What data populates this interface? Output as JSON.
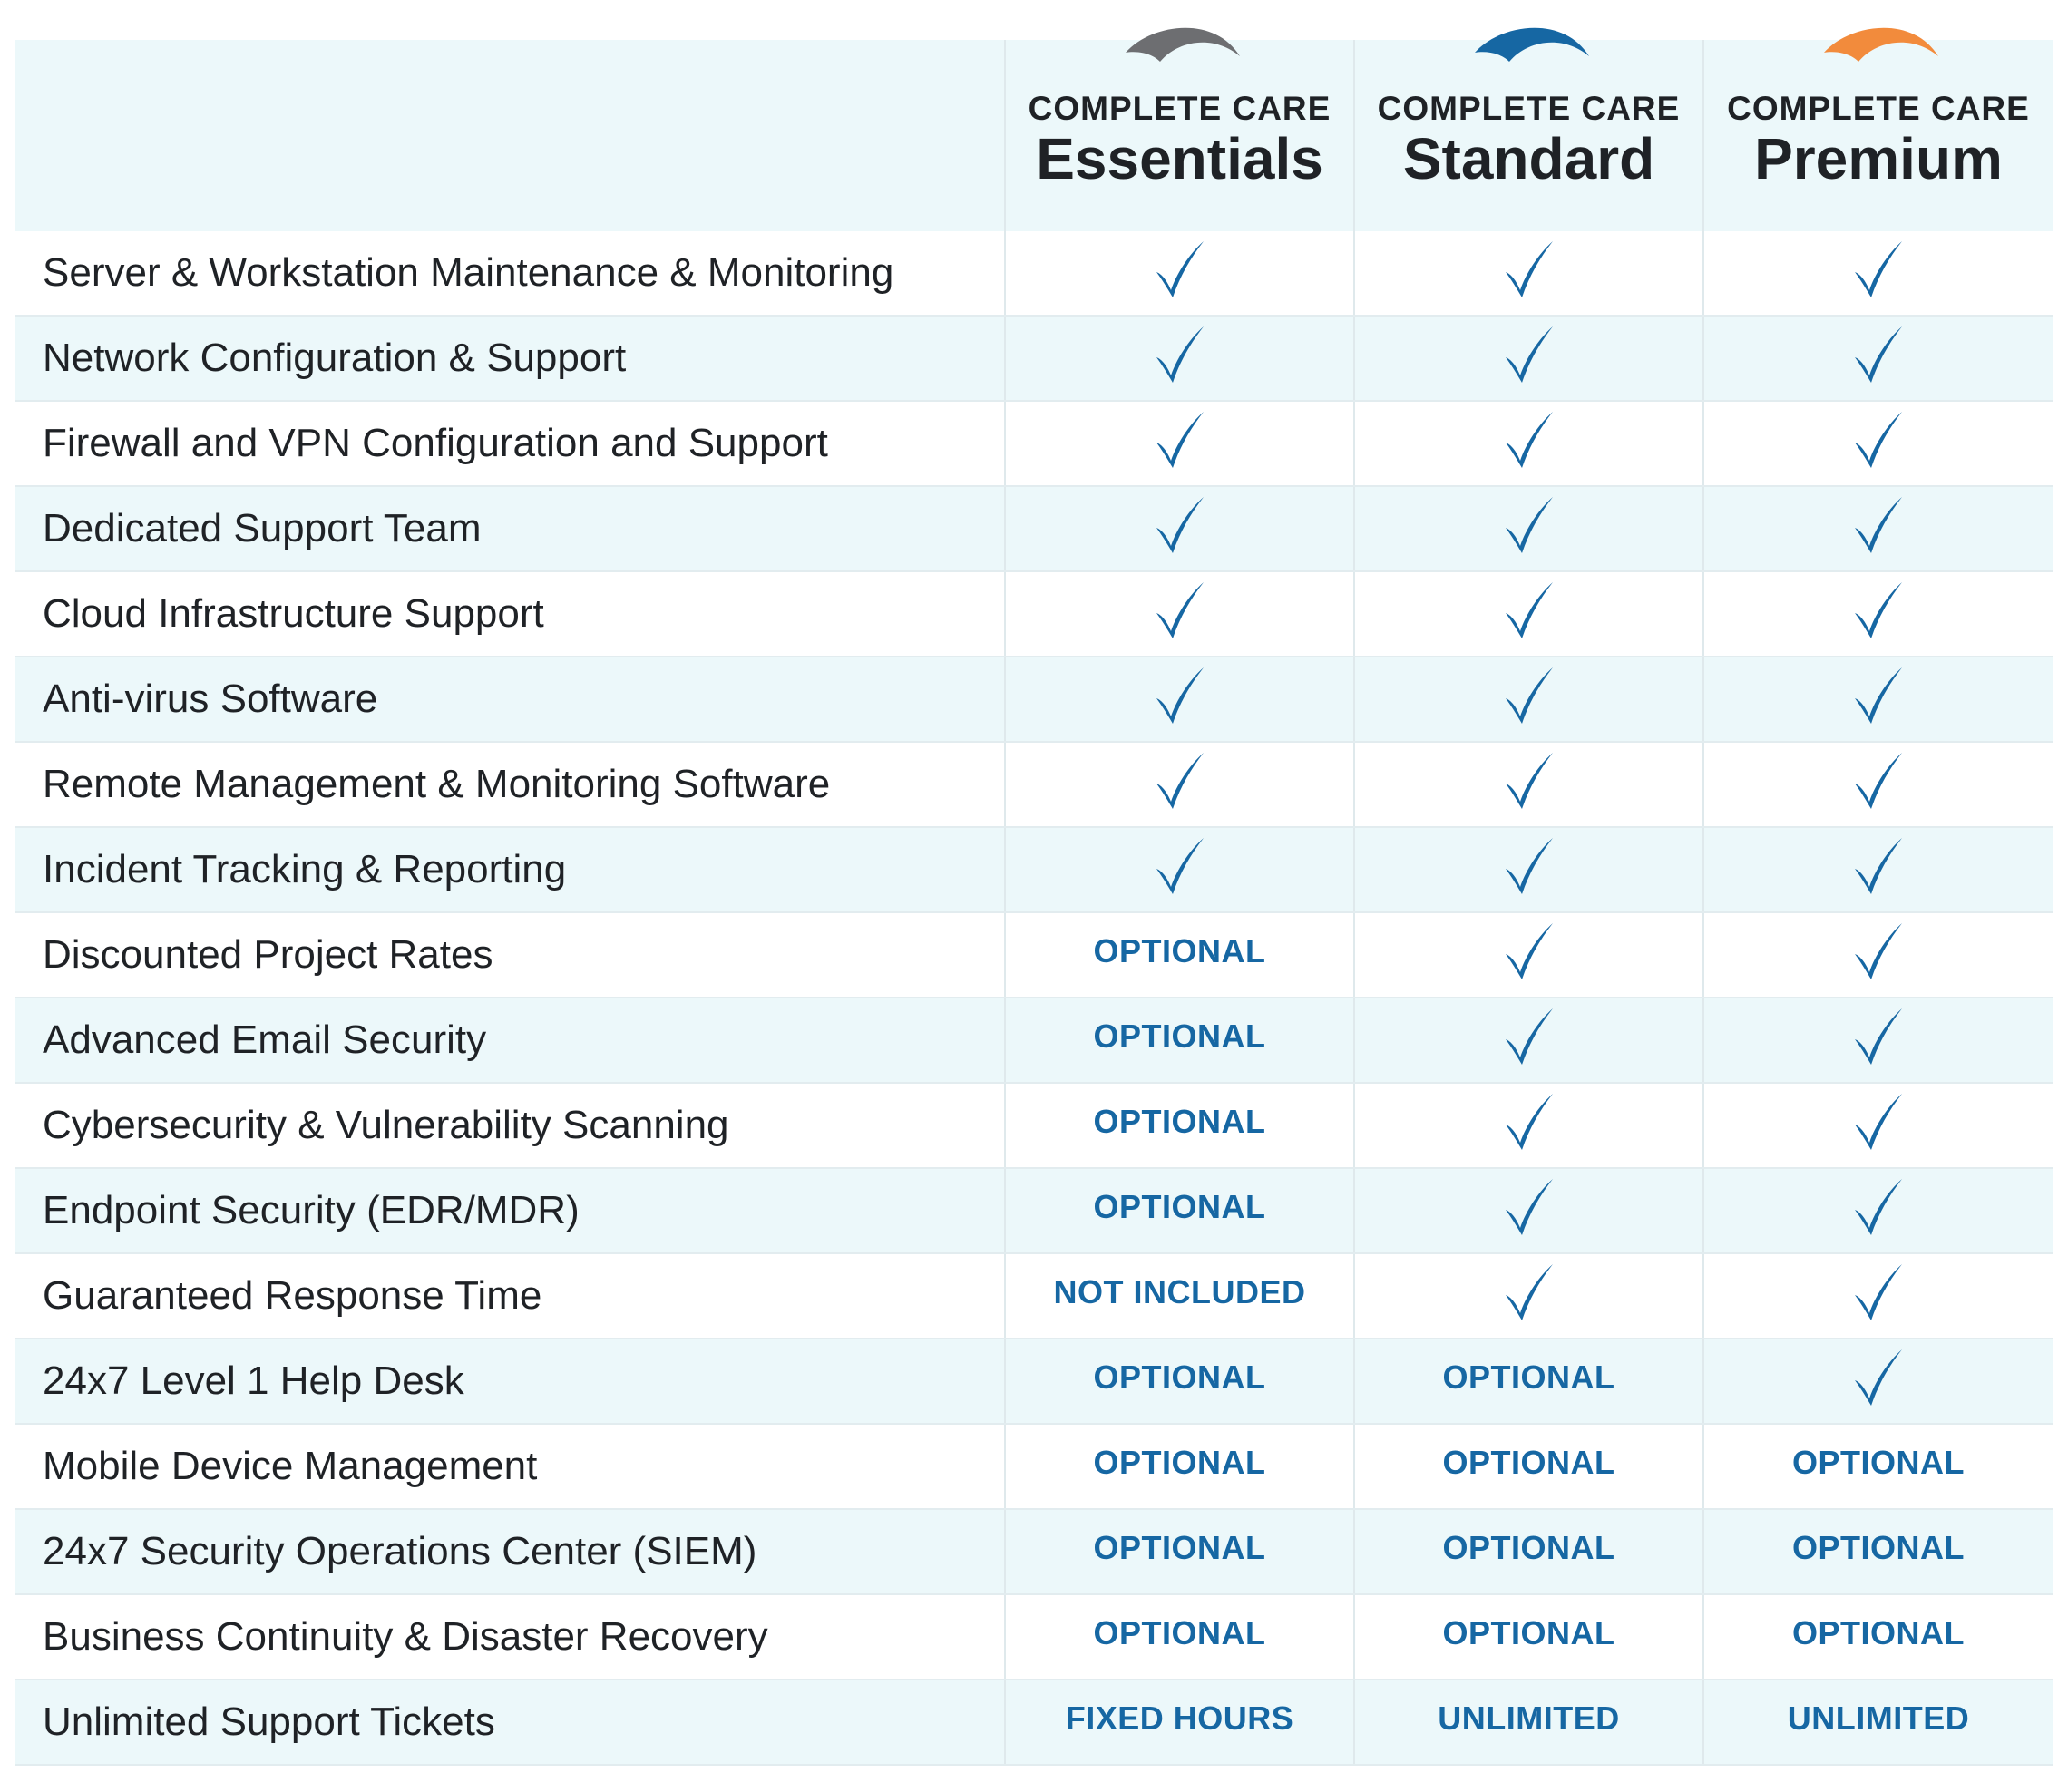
{
  "colors": {
    "header_bg": "#ecf8fa",
    "alt_row_bg": "#ecf8fa",
    "row_bg": "#ffffff",
    "text": "#1f2226",
    "accent": "#1667a3",
    "check": "#1667a3"
  },
  "plans": [
    {
      "brand": "COMPLETE CARE",
      "name": "Essentials",
      "arc_color": "#6d6e71"
    },
    {
      "brand": "COMPLETE CARE",
      "name": "Standard",
      "arc_color": "#1667a3"
    },
    {
      "brand": "COMPLETE CARE",
      "name": "Premium",
      "arc_color": "#f28b3c"
    }
  ],
  "features": [
    {
      "label": "Server & Workstation Maintenance & Monitoring",
      "values": [
        "check",
        "check",
        "check"
      ]
    },
    {
      "label": "Network Configuration & Support",
      "values": [
        "check",
        "check",
        "check"
      ]
    },
    {
      "label": "Firewall and VPN Configuration and Support",
      "values": [
        "check",
        "check",
        "check"
      ]
    },
    {
      "label": "Dedicated Support Team",
      "values": [
        "check",
        "check",
        "check"
      ]
    },
    {
      "label": "Cloud Infrastructure Support",
      "values": [
        "check",
        "check",
        "check"
      ]
    },
    {
      "label": "Anti-virus Software",
      "values": [
        "check",
        "check",
        "check"
      ]
    },
    {
      "label": "Remote Management & Monitoring Software",
      "values": [
        "check",
        "check",
        "check"
      ]
    },
    {
      "label": "Incident Tracking & Reporting",
      "values": [
        "check",
        "check",
        "check"
      ]
    },
    {
      "label": "Discounted Project Rates",
      "values": [
        "OPTIONAL",
        "check",
        "check"
      ]
    },
    {
      "label": "Advanced Email Security",
      "values": [
        "OPTIONAL",
        "check",
        "check"
      ]
    },
    {
      "label": "Cybersecurity & Vulnerability Scanning",
      "values": [
        "OPTIONAL",
        "check",
        "check"
      ]
    },
    {
      "label": "Endpoint Security (EDR/MDR)",
      "values": [
        "OPTIONAL",
        "check",
        "check"
      ]
    },
    {
      "label": "Guaranteed Response Time",
      "values": [
        "NOT INCLUDED",
        "check",
        "check"
      ]
    },
    {
      "label": "24x7 Level 1 Help Desk",
      "values": [
        "OPTIONAL",
        "OPTIONAL",
        "check"
      ]
    },
    {
      "label": "Mobile Device Management",
      "values": [
        "OPTIONAL",
        "OPTIONAL",
        "OPTIONAL"
      ]
    },
    {
      "label": "24x7 Security Operations Center (SIEM)",
      "values": [
        "OPTIONAL",
        "OPTIONAL",
        "OPTIONAL"
      ]
    },
    {
      "label": "Business Continuity & Disaster Recovery",
      "values": [
        "OPTIONAL",
        "OPTIONAL",
        "OPTIONAL"
      ]
    },
    {
      "label": "Unlimited Support Tickets",
      "values": [
        "FIXED HOURS",
        "UNLIMITED",
        "UNLIMITED"
      ]
    }
  ],
  "icons": {
    "check": "checkmark-icon",
    "arc": "plan-arc-icon"
  }
}
